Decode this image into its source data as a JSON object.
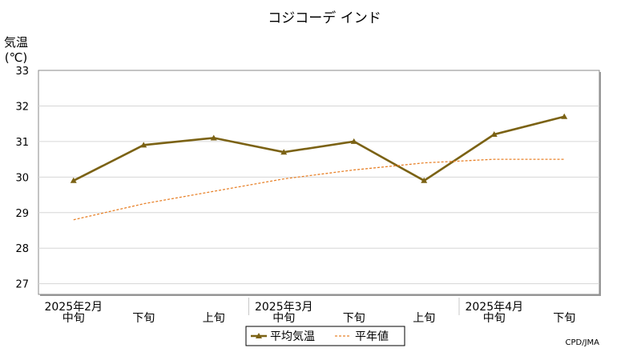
{
  "chart_data": {
    "type": "line",
    "title": "コジコーデ インド",
    "ylabel_line1": "気温",
    "ylabel_line2": "(℃)",
    "ylim": [
      26.7,
      33
    ],
    "yticks": [
      27,
      28,
      29,
      30,
      31,
      32,
      33
    ],
    "grid": true,
    "categories": [
      "中旬",
      "下旬",
      "上旬",
      "中旬",
      "下旬",
      "上旬",
      "中旬",
      "下旬"
    ],
    "months": [
      {
        "label": "2025年2月",
        "index": 0
      },
      {
        "label": "2025年3月",
        "index": 3
      },
      {
        "label": "2025年4月",
        "index": 6
      }
    ],
    "series": [
      {
        "name": "平均気温",
        "style": "solid-marker",
        "color": "#7b6214",
        "values": [
          29.9,
          30.9,
          31.1,
          30.7,
          31.0,
          29.9,
          31.2,
          31.7
        ]
      },
      {
        "name": "平年値",
        "style": "dashed",
        "color": "#e8822a",
        "values": [
          28.8,
          29.25,
          29.6,
          29.95,
          30.2,
          30.4,
          30.5,
          30.5
        ]
      }
    ],
    "legend_position": "bottom",
    "credit": "CPD/JMA"
  }
}
